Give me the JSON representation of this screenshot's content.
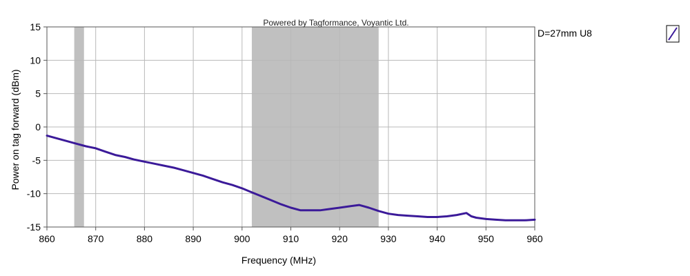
{
  "chart_data": {
    "type": "line",
    "annotation": "Powered by Tagformance, Voyantic Ltd.",
    "xlabel": "Frequency (MHz)",
    "ylabel": "Power on tag forward (dBm)",
    "xlim": [
      860,
      960
    ],
    "ylim": [
      -15,
      15
    ],
    "x_ticks": [
      860,
      870,
      880,
      890,
      900,
      910,
      920,
      930,
      940,
      950,
      960
    ],
    "y_ticks": [
      15,
      10,
      5,
      0,
      -5,
      -10,
      -15
    ],
    "grid": true,
    "legend_position": "top-right",
    "shaded_bands": [
      {
        "x_start": 865.6,
        "x_end": 867.6,
        "color": "#c0c0c0"
      },
      {
        "x_start": 902,
        "x_end": 928,
        "color": "#c0c0c0"
      }
    ],
    "series": [
      {
        "name": "D=27mm U8",
        "color": "#3b1a99",
        "x": [
          860,
          862,
          864,
          866,
          868,
          870,
          872,
          874,
          876,
          878,
          880,
          882,
          884,
          886,
          888,
          890,
          892,
          894,
          896,
          898,
          900,
          902,
          904,
          906,
          908,
          910,
          912,
          914,
          916,
          918,
          920,
          922,
          924,
          926,
          928,
          930,
          932,
          934,
          936,
          938,
          940,
          942,
          944,
          946,
          947,
          948,
          950,
          952,
          954,
          956,
          958,
          960
        ],
        "y": [
          -1.3,
          -1.7,
          -2.1,
          -2.5,
          -2.9,
          -3.2,
          -3.7,
          -4.2,
          -4.5,
          -4.9,
          -5.2,
          -5.5,
          -5.8,
          -6.1,
          -6.5,
          -6.9,
          -7.3,
          -7.8,
          -8.3,
          -8.7,
          -9.2,
          -9.8,
          -10.4,
          -11.0,
          -11.6,
          -12.1,
          -12.5,
          -12.5,
          -12.5,
          -12.3,
          -12.1,
          -11.9,
          -11.7,
          -12.1,
          -12.6,
          -13.0,
          -13.2,
          -13.3,
          -13.4,
          -13.5,
          -13.5,
          -13.4,
          -13.2,
          -12.9,
          -13.4,
          -13.6,
          -13.8,
          -13.9,
          -14.0,
          -14.0,
          -14.0,
          -13.9
        ]
      }
    ]
  }
}
